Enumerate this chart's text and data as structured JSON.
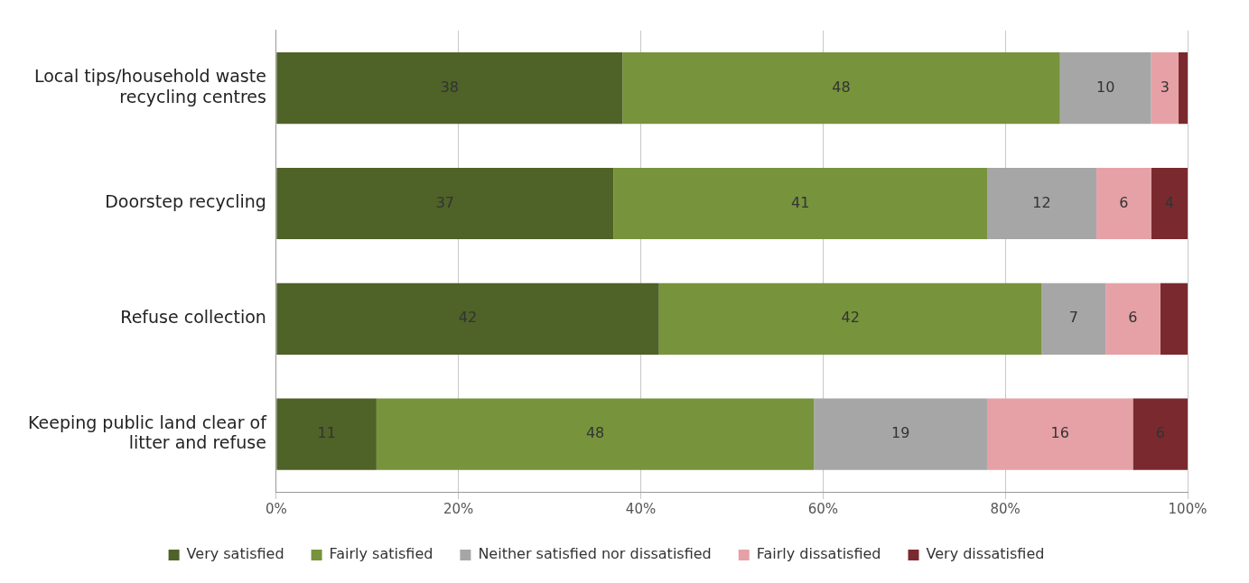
{
  "chart_data": {
    "type": "bar",
    "orientation": "horizontal",
    "stacked": true,
    "categories": [
      "Local tips/household waste recycling centres",
      "Doorstep recycling",
      "Refuse collection",
      "Keeping public land clear of litter and refuse"
    ],
    "series": [
      {
        "name": "Very satisfied",
        "color": "#4f6228",
        "values": [
          38,
          37,
          42,
          11
        ],
        "value_labels": [
          "38",
          "37",
          "42",
          "11"
        ]
      },
      {
        "name": "Fairly satisfied",
        "color": "#77933c",
        "values": [
          48,
          41,
          42,
          48
        ],
        "value_labels": [
          "48",
          "41",
          "42",
          "48"
        ]
      },
      {
        "name": "Neither satisfied nor dissatisfied",
        "color": "#a6a6a6",
        "values": [
          10,
          12,
          7,
          19
        ],
        "value_labels": [
          "10",
          "12",
          "7",
          "19"
        ]
      },
      {
        "name": "Fairly dissatisfied",
        "color": "#e6a1a6",
        "values": [
          3,
          6,
          6,
          16
        ],
        "value_labels": [
          "3",
          "6",
          "6",
          "16"
        ]
      },
      {
        "name": "Very dissatisfied",
        "color": "#7a2a2e",
        "values": [
          1,
          4,
          3,
          6
        ],
        "value_labels": [
          null,
          "4",
          null,
          "6"
        ]
      }
    ],
    "xlim": [
      0,
      100
    ],
    "xticks": [
      {
        "value": 0,
        "label": "0%"
      },
      {
        "value": 20,
        "label": "20%"
      },
      {
        "value": 40,
        "label": "40%"
      },
      {
        "value": 60,
        "label": "60%"
      },
      {
        "value": 80,
        "label": "80%"
      },
      {
        "value": 100,
        "label": "100%"
      }
    ],
    "grid": "x",
    "legend": "bottom"
  }
}
